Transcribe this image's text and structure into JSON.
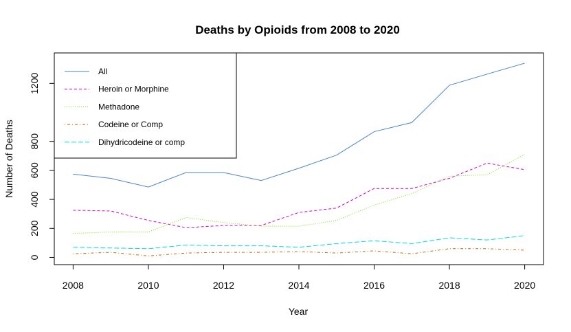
{
  "chart_data": {
    "type": "line",
    "title": "Deaths by Opioids from 2008 to 2020",
    "xlabel": "Year",
    "ylabel": "Number of Deaths",
    "x": [
      2008,
      2009,
      2010,
      2011,
      2012,
      2013,
      2014,
      2015,
      2016,
      2017,
      2018,
      2019,
      2020
    ],
    "xlim": [
      2007.5,
      2020.5
    ],
    "ylim": [
      -50,
      1410
    ],
    "x_ticks": [
      2008,
      2010,
      2012,
      2014,
      2016,
      2018,
      2020
    ],
    "y_ticks": [
      0,
      200,
      400,
      600,
      800,
      1200
    ],
    "grid": false,
    "legend_position": "top-left",
    "series": [
      {
        "name": "All",
        "color": "#4a86c8",
        "dash": "solid",
        "values": [
          574,
          545,
          485,
          585,
          585,
          530,
          615,
          705,
          867,
          930,
          1187,
          1264,
          1339
        ]
      },
      {
        "name": "Heroin or Morphine",
        "color": "#cc00cc",
        "dash": "dashed",
        "values": [
          325,
          320,
          255,
          205,
          220,
          220,
          310,
          340,
          475,
          475,
          545,
          650,
          605
        ]
      },
      {
        "name": "Methadone",
        "color": "#7fdd00",
        "dash": "dotted",
        "values": [
          165,
          175,
          175,
          275,
          240,
          215,
          215,
          255,
          360,
          440,
          560,
          570,
          710
        ]
      },
      {
        "name": "Codeine or Comp",
        "color": "#cc6600",
        "dash": "dotdash",
        "values": [
          25,
          35,
          10,
          30,
          35,
          35,
          40,
          30,
          45,
          25,
          60,
          60,
          50
        ]
      },
      {
        "name": "Dihydricodeine or comp",
        "color": "#00dddd",
        "dash": "longdash",
        "values": [
          70,
          65,
          60,
          85,
          80,
          80,
          70,
          95,
          115,
          95,
          135,
          120,
          150
        ]
      }
    ]
  }
}
